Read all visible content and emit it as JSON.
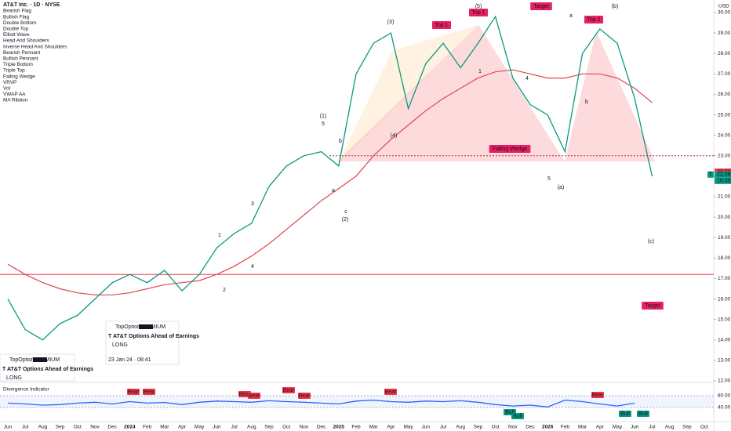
{
  "chart_data": [
    {
      "type": "line",
      "title": "AT&T Inc. · 1D · NYSE",
      "currency": "USD",
      "indicators": [
        "Bearish Flag",
        "Bullish Flag",
        "Double Bottom",
        "Double Top",
        "Elliott Wave",
        "Head And Shoulders",
        "Inverse Head And Shoulders",
        "Bearish Pennant",
        "Bullish Pennant",
        "Triple Bottom",
        "Triple Top",
        "Falling Wedge",
        "VRVP",
        "Vol",
        "VWAP AA"
      ],
      "categories": [
        "Jun",
        "Jul",
        "Aug",
        "Sep",
        "Oct",
        "Nov",
        "Dec",
        "2024",
        "Feb",
        "Mar",
        "Apr",
        "May",
        "Jun",
        "Jul",
        "Aug",
        "Sep",
        "Oct",
        "Nov",
        "Dec",
        "2025",
        "Feb",
        "Mar",
        "Apr",
        "May",
        "Jun",
        "Jul",
        "Aug",
        "Sep",
        "Oct",
        "Nov",
        "Dec",
        "2026",
        "Feb",
        "Mar",
        "Apr",
        "May",
        "Jun",
        "Jul",
        "Aug",
        "Sep",
        "Oct"
      ],
      "values": [
        16.0,
        14.5,
        14.0,
        14.8,
        15.2,
        16.0,
        16.8,
        17.2,
        16.8,
        17.4,
        16.4,
        17.2,
        18.5,
        19.2,
        19.7,
        21.5,
        22.5,
        23.0,
        23.2,
        22.5,
        27.0,
        28.5,
        29.0,
        25.3,
        27.5,
        28.5,
        27.3,
        28.5,
        29.8,
        26.8,
        25.5,
        25.0,
        23.2,
        28.0,
        29.2,
        28.5,
        25.8,
        22.0,
        null,
        null,
        null
      ],
      "color": "#089981",
      "series": [
        {
          "name": "MA Ribbon",
          "color": "#e0474c",
          "values": [
            17.7,
            17.2,
            16.8,
            16.5,
            16.3,
            16.2,
            16.2,
            16.3,
            16.5,
            16.7,
            16.8,
            16.9,
            17.2,
            17.6,
            18.1,
            18.7,
            19.4,
            20.1,
            20.8,
            21.4,
            22.0,
            23.0,
            23.8,
            24.5,
            25.2,
            25.8,
            26.3,
            26.8,
            27.1,
            27.2,
            27.0,
            26.8,
            26.8,
            27.0,
            27.0,
            26.8,
            26.3,
            25.6,
            null,
            null,
            null
          ]
        }
      ],
      "ylim": [
        12,
        30
      ],
      "yticks": [
        {
          "value": 12,
          "label": "12.00"
        },
        {
          "value": 13,
          "label": "13.00"
        },
        {
          "value": 14,
          "label": "14.00"
        },
        {
          "value": 15,
          "label": "15.00"
        },
        {
          "value": 16,
          "label": "16.00"
        },
        {
          "value": 17,
          "label": "17.00"
        },
        {
          "value": 18,
          "label": "18.00"
        },
        {
          "value": 19,
          "label": "19.00"
        },
        {
          "value": 20,
          "label": "20.00"
        },
        {
          "value": 21,
          "label": "21.00"
        },
        {
          "value": 22,
          "label": "22.00"
        },
        {
          "value": 23,
          "label": "23.00"
        },
        {
          "value": 24,
          "label": "24.00"
        },
        {
          "value": 25,
          "label": "25.00"
        },
        {
          "value": 26,
          "label": "26.00"
        },
        {
          "value": 27,
          "label": "27.00"
        },
        {
          "value": 28,
          "label": "28.00"
        },
        {
          "value": 29,
          "label": "29.00"
        },
        {
          "value": 30,
          "label": "30.00"
        }
      ],
      "levels": [
        17.2,
        23.0
      ],
      "price_markers": [
        22.22,
        22.08
      ],
      "countdown": "16:35",
      "symbol_tag": "T",
      "annotations": [
        "(1)",
        "5",
        "b",
        "a",
        "c",
        "(2)",
        "(3)",
        "(4)",
        "(5)",
        "Top 1",
        "Top 1",
        "Target",
        "Top 2",
        "(b)",
        "Falling Wedge",
        "5",
        "(a)",
        "(c)",
        "Target",
        "1",
        "2",
        "3",
        "4",
        "a",
        "b",
        "1",
        "4"
      ],
      "news": [
        {
          "source": "TopOptions",
          "badge": "PREMIUM",
          "headline": "T AT&T Options Ahead of Earnings",
          "side": "LONG",
          "time": "23 Jan 24 · 08:41"
        },
        {
          "source": "TopOptions",
          "badge": "PREMIUM",
          "headline": "T AT&T Options Ahead of Earnings",
          "side": "LONG"
        }
      ]
    },
    {
      "type": "line",
      "title": "Divergence Indicator",
      "values": [
        55,
        52,
        48,
        50,
        55,
        58,
        52,
        60,
        55,
        57,
        50,
        58,
        62,
        60,
        58,
        63,
        60,
        58,
        55,
        52,
        62,
        65,
        60,
        58,
        62,
        60,
        63,
        58,
        50,
        45,
        48,
        42,
        65,
        60,
        52,
        45,
        55,
        null,
        null,
        null,
        null
      ],
      "color": "#2962ff",
      "ylim": [
        0,
        120
      ],
      "yticks": [
        {
          "value": 80,
          "label": "80.00"
        },
        {
          "value": 40,
          "label": "40.00"
        }
      ],
      "signals": [
        {
          "label": "Bear",
          "color": "#f23645"
        },
        {
          "label": "Bear",
          "color": "#f23645"
        },
        {
          "label": "Bear",
          "color": "#f23645"
        },
        {
          "label": "Bear",
          "color": "#f23645"
        },
        {
          "label": "Bear",
          "color": "#f23645"
        },
        {
          "label": "Bear",
          "color": "#f23645"
        },
        {
          "label": "Bear",
          "color": "#f23645"
        },
        {
          "label": "Bear",
          "color": "#f23645"
        },
        {
          "label": "Bull",
          "color": "#089981"
        },
        {
          "label": "Bull",
          "color": "#089981"
        },
        {
          "label": "Bull",
          "color": "#089981"
        },
        {
          "label": "Bull",
          "color": "#089981"
        }
      ]
    }
  ]
}
